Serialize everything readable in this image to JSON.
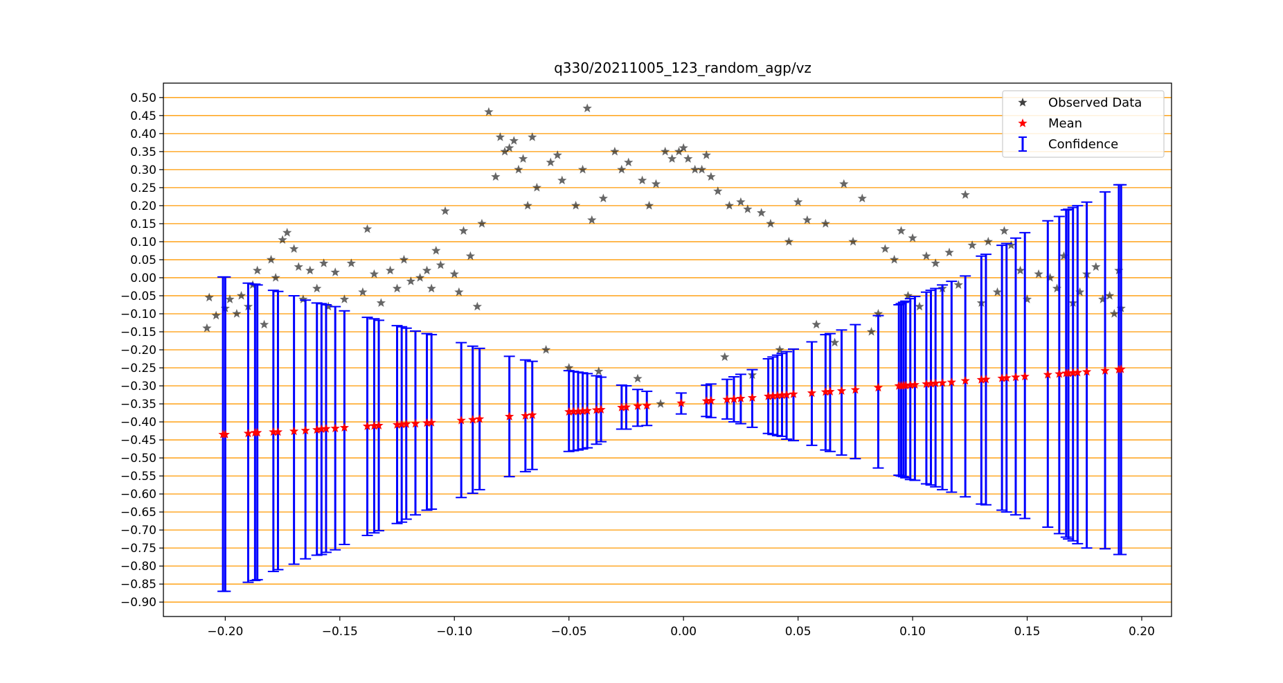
{
  "chart_data": {
    "type": "scatter",
    "title": "q330/20211005_123_random_agp/vz",
    "xlabel": "",
    "ylabel": "",
    "xlim": [
      -0.227,
      0.213
    ],
    "ylim": [
      -0.94,
      0.54
    ],
    "x_ticks": [
      "−0.20",
      "−0.15",
      "−0.10",
      "−0.05",
      "0.00",
      "0.05",
      "0.10",
      "0.15",
      "0.20"
    ],
    "x_tick_values": [
      -0.2,
      -0.15,
      -0.1,
      -0.05,
      0.0,
      0.05,
      0.1,
      0.15,
      0.2
    ],
    "y_ticks": [
      "0.50",
      "0.45",
      "0.40",
      "0.35",
      "0.30",
      "0.25",
      "0.20",
      "0.15",
      "0.10",
      "0.05",
      "0.00",
      "−0.05",
      "−0.10",
      "−0.15",
      "−0.20",
      "−0.25",
      "−0.30",
      "−0.35",
      "−0.40",
      "−0.45",
      "−0.50",
      "−0.55",
      "−0.60",
      "−0.65",
      "−0.70",
      "−0.75",
      "−0.80",
      "−0.85",
      "−0.90"
    ],
    "y_tick_values": [
      0.5,
      0.45,
      0.4,
      0.35,
      0.3,
      0.25,
      0.2,
      0.15,
      0.1,
      0.05,
      0.0,
      -0.05,
      -0.1,
      -0.15,
      -0.2,
      -0.25,
      -0.3,
      -0.35,
      -0.4,
      -0.45,
      -0.5,
      -0.55,
      -0.6,
      -0.65,
      -0.7,
      -0.75,
      -0.8,
      -0.85,
      -0.9
    ],
    "grid": "horizontal",
    "grid_color": "#ff9900",
    "legend_position": "top-right",
    "legend": [
      {
        "label": "Observed Data",
        "marker": "star",
        "color": "#404040"
      },
      {
        "label": "Mean",
        "marker": "star",
        "color": "#ff0000"
      },
      {
        "label": "Confidence",
        "marker": "errorbar",
        "color": "#0000ff"
      }
    ],
    "series": [
      {
        "name": "Observed Data",
        "color": "#000000",
        "kind": "scatter",
        "points": [
          [
            -0.208,
            -0.14
          ],
          [
            -0.207,
            -0.055
          ],
          [
            -0.204,
            -0.105
          ],
          [
            -0.2,
            -0.085
          ],
          [
            -0.198,
            -0.06
          ],
          [
            -0.195,
            -0.1
          ],
          [
            -0.193,
            -0.05
          ],
          [
            -0.19,
            -0.08
          ],
          [
            -0.188,
            -0.02
          ],
          [
            -0.186,
            0.02
          ],
          [
            -0.183,
            -0.13
          ],
          [
            -0.18,
            0.05
          ],
          [
            -0.178,
            0.0
          ],
          [
            -0.175,
            0.105
          ],
          [
            -0.173,
            0.125
          ],
          [
            -0.17,
            0.08
          ],
          [
            -0.168,
            0.03
          ],
          [
            -0.166,
            -0.06
          ],
          [
            -0.163,
            0.02
          ],
          [
            -0.16,
            -0.03
          ],
          [
            -0.157,
            0.04
          ],
          [
            -0.155,
            -0.08
          ],
          [
            -0.152,
            0.015
          ],
          [
            -0.148,
            -0.06
          ],
          [
            -0.145,
            0.04
          ],
          [
            -0.14,
            -0.04
          ],
          [
            -0.138,
            0.135
          ],
          [
            -0.135,
            0.01
          ],
          [
            -0.132,
            -0.07
          ],
          [
            -0.128,
            0.02
          ],
          [
            -0.125,
            -0.03
          ],
          [
            -0.122,
            0.05
          ],
          [
            -0.119,
            -0.01
          ],
          [
            -0.115,
            0.0
          ],
          [
            -0.112,
            0.02
          ],
          [
            -0.11,
            -0.03
          ],
          [
            -0.108,
            0.075
          ],
          [
            -0.106,
            0.035
          ],
          [
            -0.104,
            0.185
          ],
          [
            -0.1,
            0.01
          ],
          [
            -0.098,
            -0.04
          ],
          [
            -0.096,
            0.13
          ],
          [
            -0.093,
            0.06
          ],
          [
            -0.09,
            -0.08
          ],
          [
            -0.088,
            0.15
          ],
          [
            -0.085,
            0.46
          ],
          [
            -0.082,
            0.28
          ],
          [
            -0.08,
            0.39
          ],
          [
            -0.078,
            0.35
          ],
          [
            -0.076,
            0.36
          ],
          [
            -0.074,
            0.38
          ],
          [
            -0.072,
            0.3
          ],
          [
            -0.07,
            0.33
          ],
          [
            -0.068,
            0.2
          ],
          [
            -0.066,
            0.39
          ],
          [
            -0.064,
            0.25
          ],
          [
            -0.06,
            -0.2
          ],
          [
            -0.058,
            0.32
          ],
          [
            -0.055,
            0.34
          ],
          [
            -0.053,
            0.27
          ],
          [
            -0.05,
            -0.25
          ],
          [
            -0.047,
            0.2
          ],
          [
            -0.044,
            0.3
          ],
          [
            -0.042,
            0.47
          ],
          [
            -0.04,
            0.16
          ],
          [
            -0.037,
            -0.26
          ],
          [
            -0.035,
            0.22
          ],
          [
            -0.03,
            0.35
          ],
          [
            -0.027,
            0.3
          ],
          [
            -0.024,
            0.32
          ],
          [
            -0.02,
            -0.28
          ],
          [
            -0.018,
            0.27
          ],
          [
            -0.015,
            0.2
          ],
          [
            -0.012,
            0.26
          ],
          [
            -0.01,
            -0.35
          ],
          [
            -0.008,
            0.35
          ],
          [
            -0.005,
            0.33
          ],
          [
            -0.002,
            0.35
          ],
          [
            0.0,
            0.36
          ],
          [
            0.002,
            0.33
          ],
          [
            0.005,
            0.3
          ],
          [
            0.008,
            0.3
          ],
          [
            0.01,
            0.34
          ],
          [
            0.012,
            0.28
          ],
          [
            0.015,
            0.24
          ],
          [
            0.018,
            -0.22
          ],
          [
            0.02,
            0.2
          ],
          [
            0.025,
            0.21
          ],
          [
            0.028,
            0.19
          ],
          [
            0.03,
            -0.27
          ],
          [
            0.034,
            0.18
          ],
          [
            0.038,
            0.15
          ],
          [
            0.042,
            -0.2
          ],
          [
            0.046,
            0.1
          ],
          [
            0.05,
            0.21
          ],
          [
            0.054,
            0.16
          ],
          [
            0.058,
            -0.13
          ],
          [
            0.062,
            0.15
          ],
          [
            0.066,
            -0.18
          ],
          [
            0.07,
            0.26
          ],
          [
            0.074,
            0.1
          ],
          [
            0.078,
            0.22
          ],
          [
            0.082,
            -0.15
          ],
          [
            0.085,
            -0.1
          ],
          [
            0.088,
            0.08
          ],
          [
            0.092,
            0.05
          ],
          [
            0.095,
            0.13
          ],
          [
            0.098,
            -0.05
          ],
          [
            0.1,
            0.11
          ],
          [
            0.103,
            -0.08
          ],
          [
            0.106,
            0.06
          ],
          [
            0.11,
            0.04
          ],
          [
            0.113,
            -0.03
          ],
          [
            0.116,
            0.07
          ],
          [
            0.12,
            -0.02
          ],
          [
            0.123,
            0.23
          ],
          [
            0.126,
            0.09
          ],
          [
            0.13,
            -0.07
          ],
          [
            0.133,
            0.1
          ],
          [
            0.137,
            -0.04
          ],
          [
            0.14,
            0.13
          ],
          [
            0.143,
            0.09
          ],
          [
            0.147,
            0.02
          ],
          [
            0.15,
            -0.06
          ],
          [
            0.155,
            0.01
          ],
          [
            0.16,
            0.0
          ],
          [
            0.163,
            -0.03
          ],
          [
            0.166,
            0.06
          ],
          [
            0.17,
            -0.07
          ],
          [
            0.173,
            -0.04
          ],
          [
            0.176,
            0.01
          ],
          [
            0.18,
            0.03
          ],
          [
            0.183,
            -0.06
          ],
          [
            0.186,
            -0.05
          ],
          [
            0.188,
            -0.1
          ],
          [
            0.19,
            0.02
          ],
          [
            0.191,
            -0.085
          ]
        ]
      },
      {
        "name": "Mean",
        "color": "#ff0000",
        "kind": "scatter",
        "x": [
          -0.201,
          -0.2,
          -0.19,
          -0.187,
          -0.186,
          -0.179,
          -0.177,
          -0.17,
          -0.165,
          -0.16,
          -0.158,
          -0.156,
          -0.152,
          -0.148,
          -0.138,
          -0.135,
          -0.133,
          -0.125,
          -0.123,
          -0.121,
          -0.117,
          -0.112,
          -0.11,
          -0.097,
          -0.092,
          -0.089,
          -0.076,
          -0.069,
          -0.066,
          -0.05,
          -0.048,
          -0.046,
          -0.044,
          -0.042,
          -0.038,
          -0.036,
          -0.027,
          -0.025,
          -0.02,
          -0.016,
          -0.001,
          0.01,
          0.012,
          0.019,
          0.022,
          0.025,
          0.03,
          0.037,
          0.039,
          0.041,
          0.043,
          0.045,
          0.048,
          0.056,
          0.062,
          0.064,
          0.069,
          0.075,
          0.085,
          0.094,
          0.095,
          0.096,
          0.097,
          0.099,
          0.101,
          0.106,
          0.108,
          0.11,
          0.113,
          0.117,
          0.123,
          0.13,
          0.132,
          0.139,
          0.141,
          0.145,
          0.149,
          0.159,
          0.164,
          0.167,
          0.168,
          0.17,
          0.172,
          0.176,
          0.184,
          0.19,
          0.191
        ],
        "y": [
          -0.435,
          -0.435,
          -0.432,
          -0.43,
          -0.43,
          -0.428,
          -0.428,
          -0.426,
          -0.424,
          -0.422,
          -0.42,
          -0.419,
          -0.418,
          -0.416,
          -0.412,
          -0.411,
          -0.41,
          -0.408,
          -0.407,
          -0.406,
          -0.405,
          -0.403,
          -0.402,
          -0.396,
          -0.394,
          -0.392,
          -0.385,
          -0.383,
          -0.381,
          -0.372,
          -0.371,
          -0.371,
          -0.37,
          -0.369,
          -0.367,
          -0.366,
          -0.36,
          -0.359,
          -0.356,
          -0.355,
          -0.348,
          -0.342,
          -0.341,
          -0.338,
          -0.337,
          -0.335,
          -0.333,
          -0.329,
          -0.328,
          -0.327,
          -0.326,
          -0.325,
          -0.323,
          -0.32,
          -0.317,
          -0.316,
          -0.314,
          -0.311,
          -0.305,
          -0.3,
          -0.3,
          -0.299,
          -0.299,
          -0.298,
          -0.297,
          -0.295,
          -0.294,
          -0.293,
          -0.292,
          -0.29,
          -0.286,
          -0.283,
          -0.282,
          -0.279,
          -0.278,
          -0.276,
          -0.274,
          -0.269,
          -0.267,
          -0.265,
          -0.265,
          -0.264,
          -0.263,
          -0.261,
          -0.258,
          -0.255,
          -0.254
        ]
      },
      {
        "name": "Confidence",
        "color": "#0000ff",
        "kind": "errorbar",
        "x": [
          -0.201,
          -0.2,
          -0.19,
          -0.187,
          -0.186,
          -0.179,
          -0.177,
          -0.17,
          -0.165,
          -0.16,
          -0.158,
          -0.156,
          -0.152,
          -0.148,
          -0.138,
          -0.135,
          -0.133,
          -0.125,
          -0.123,
          -0.121,
          -0.117,
          -0.112,
          -0.11,
          -0.097,
          -0.092,
          -0.089,
          -0.076,
          -0.069,
          -0.066,
          -0.05,
          -0.048,
          -0.046,
          -0.044,
          -0.042,
          -0.038,
          -0.036,
          -0.027,
          -0.025,
          -0.02,
          -0.016,
          -0.001,
          0.01,
          0.012,
          0.019,
          0.022,
          0.025,
          0.03,
          0.037,
          0.039,
          0.041,
          0.043,
          0.045,
          0.048,
          0.056,
          0.062,
          0.064,
          0.069,
          0.075,
          0.085,
          0.094,
          0.095,
          0.096,
          0.097,
          0.099,
          0.101,
          0.106,
          0.108,
          0.11,
          0.113,
          0.117,
          0.123,
          0.13,
          0.132,
          0.139,
          0.141,
          0.145,
          0.149,
          0.159,
          0.164,
          0.167,
          0.168,
          0.17,
          0.172,
          0.176,
          0.184,
          0.19,
          0.191
        ],
        "lower": [
          -0.87,
          -0.87,
          -0.845,
          -0.84,
          -0.838,
          -0.815,
          -0.81,
          -0.795,
          -0.78,
          -0.77,
          -0.768,
          -0.762,
          -0.755,
          -0.74,
          -0.715,
          -0.708,
          -0.702,
          -0.682,
          -0.678,
          -0.67,
          -0.658,
          -0.645,
          -0.642,
          -0.61,
          -0.598,
          -0.588,
          -0.552,
          -0.538,
          -0.532,
          -0.482,
          -0.48,
          -0.478,
          -0.475,
          -0.472,
          -0.462,
          -0.455,
          -0.42,
          -0.42,
          -0.412,
          -0.41,
          -0.378,
          -0.385,
          -0.388,
          -0.392,
          -0.4,
          -0.405,
          -0.415,
          -0.432,
          -0.435,
          -0.438,
          -0.44,
          -0.448,
          -0.452,
          -0.465,
          -0.478,
          -0.482,
          -0.492,
          -0.502,
          -0.528,
          -0.548,
          -0.55,
          -0.552,
          -0.555,
          -0.56,
          -0.562,
          -0.572,
          -0.575,
          -0.58,
          -0.588,
          -0.595,
          -0.608,
          -0.628,
          -0.63,
          -0.645,
          -0.65,
          -0.658,
          -0.668,
          -0.692,
          -0.71,
          -0.72,
          -0.725,
          -0.73,
          -0.738,
          -0.75,
          -0.752,
          -0.768,
          -0.768
        ],
        "upper": [
          0.002,
          0.002,
          -0.015,
          -0.018,
          -0.02,
          -0.035,
          -0.038,
          -0.05,
          -0.062,
          -0.07,
          -0.072,
          -0.075,
          -0.08,
          -0.092,
          -0.11,
          -0.114,
          -0.118,
          -0.133,
          -0.136,
          -0.14,
          -0.148,
          -0.155,
          -0.158,
          -0.18,
          -0.19,
          -0.196,
          -0.218,
          -0.228,
          -0.232,
          -0.258,
          -0.26,
          -0.262,
          -0.264,
          -0.266,
          -0.272,
          -0.276,
          -0.298,
          -0.3,
          -0.31,
          -0.315,
          -0.32,
          -0.298,
          -0.295,
          -0.282,
          -0.275,
          -0.268,
          -0.255,
          -0.225,
          -0.22,
          -0.215,
          -0.21,
          -0.205,
          -0.198,
          -0.178,
          -0.158,
          -0.155,
          -0.145,
          -0.13,
          -0.105,
          -0.075,
          -0.072,
          -0.068,
          -0.065,
          -0.058,
          -0.052,
          -0.04,
          -0.035,
          -0.03,
          -0.02,
          -0.01,
          0.005,
          0.06,
          0.065,
          0.09,
          0.095,
          0.11,
          0.125,
          0.158,
          0.17,
          0.188,
          0.19,
          0.195,
          0.2,
          0.21,
          0.238,
          0.258,
          0.258
        ]
      }
    ]
  }
}
